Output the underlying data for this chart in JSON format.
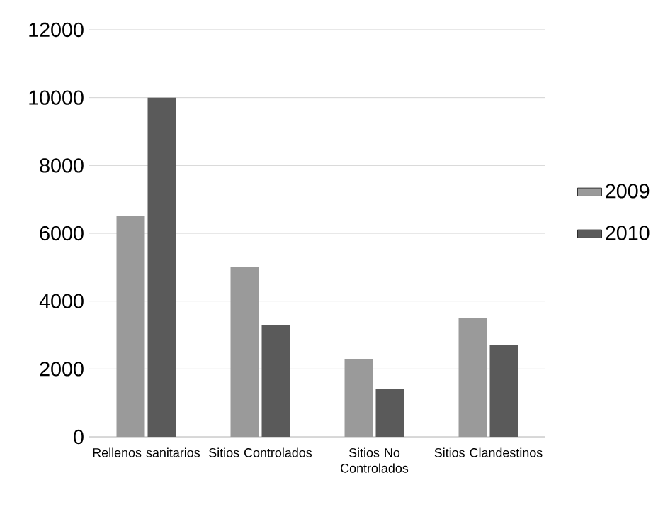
{
  "chart_data": {
    "type": "bar",
    "categories": [
      "Rellenos sanitarios",
      "Sitios Controlados",
      "Sitios No Controlados",
      "Sitios Clandestinos"
    ],
    "series": [
      {
        "name": "2009",
        "color": "#9a9a9a",
        "values": [
          6500,
          5000,
          2300,
          3500
        ]
      },
      {
        "name": "2010",
        "color": "#5a5a5a",
        "values": [
          10000,
          3300,
          1400,
          2700
        ]
      }
    ],
    "ylim": [
      0,
      12000
    ],
    "yticks": [
      0,
      2000,
      4000,
      6000,
      8000,
      10000,
      12000
    ],
    "grid": "y",
    "legend": "right"
  }
}
